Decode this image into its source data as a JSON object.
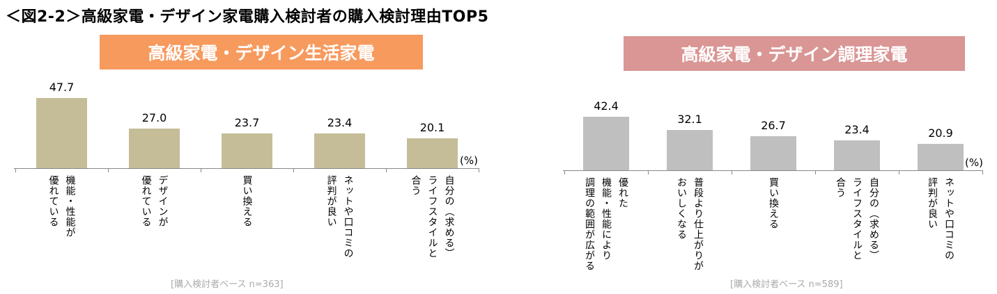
{
  "title": "＜図2-2＞高級家電・デザイン家電購入検討者の購入検討理由TOP5",
  "colors": {
    "left_header": "#F79A5E",
    "right_header": "#D99694",
    "left_bar": "#C4BD97",
    "right_bar": "#BFBFBF"
  },
  "chart_data": [
    {
      "type": "bar",
      "title": "高級家電・デザイン生活家電",
      "unit": "(%)",
      "note": "[購入検討者ベース n=363]",
      "categories": [
        "機能・性能が\n優れている",
        "デザインが\n優れている",
        "買い換える",
        "ネットや口コミの\n評判が良い",
        "自分の（求める）\nライフスタイルと\n合う"
      ],
      "values": [
        47.7,
        27.0,
        23.7,
        23.4,
        20.1
      ],
      "value_labels": [
        "47.7",
        "27.0",
        "23.7",
        "23.4",
        "20.1"
      ],
      "ylim": [
        0,
        50
      ]
    },
    {
      "type": "bar",
      "title": "高級家電・デザイン調理家電",
      "unit": "(%)",
      "note": "[購入検討者ベース n=589]",
      "categories": [
        "優れた\n機能・性能により\n調理の範囲が広がる",
        "普段より仕上がりが\nおいしくなる",
        "買い換える",
        "自分の（求める）\nライフスタイルと\n合う",
        "ネットや口コミの\n評判が良い"
      ],
      "values": [
        42.4,
        32.1,
        26.7,
        23.4,
        20.9
      ],
      "value_labels": [
        "42.4",
        "32.1",
        "26.7",
        "23.4",
        "20.9"
      ],
      "ylim": [
        0,
        50
      ]
    }
  ]
}
